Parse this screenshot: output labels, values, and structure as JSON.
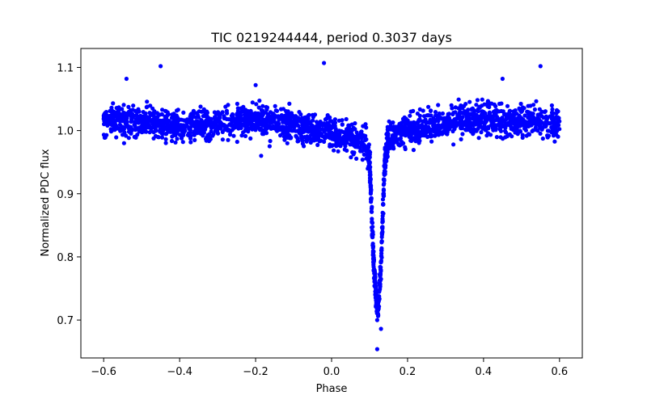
{
  "chart_data": {
    "type": "scatter",
    "title": "TIC 0219244444, period 0.3037 days",
    "xlabel": "Phase",
    "ylabel": "Normalized PDC flux",
    "xlim": [
      -0.66,
      0.66
    ],
    "ylim": [
      0.64,
      1.13
    ],
    "xticks": [
      -0.6,
      -0.4,
      -0.2,
      0.0,
      0.2,
      0.4,
      0.6
    ],
    "xtick_labels": [
      "−0.6",
      "−0.4",
      "−0.2",
      "0.0",
      "0.2",
      "0.4",
      "0.6"
    ],
    "yticks": [
      0.7,
      0.8,
      0.9,
      1.0,
      1.1
    ],
    "ytick_labels": [
      "0.7",
      "0.8",
      "0.9",
      "1.0",
      "1.1"
    ],
    "grid": false,
    "marker_color": "#0000ff",
    "series": [
      {
        "marker": "circle",
        "x_range": [
          -0.6,
          0.6
        ],
        "baseline_profile": {
          "x": [
            -0.6,
            -0.5,
            -0.4,
            -0.3,
            -0.2,
            -0.1,
            0.0,
            0.05,
            0.09,
            0.1,
            0.105,
            0.11,
            0.115,
            0.12,
            0.125,
            0.13,
            0.135,
            0.14,
            0.15,
            0.2,
            0.3,
            0.4,
            0.5,
            0.6
          ],
          "y": [
            1.018,
            1.015,
            1.005,
            1.012,
            1.018,
            1.008,
            0.995,
            0.99,
            0.98,
            0.95,
            0.88,
            0.8,
            0.75,
            0.72,
            0.73,
            0.79,
            0.87,
            0.95,
            0.99,
            1.0,
            1.012,
            1.018,
            1.015,
            1.012
          ]
        },
        "scatter_sd": 0.012,
        "outliers": [
          {
            "x": -0.45,
            "y": 1.102
          },
          {
            "x": -0.02,
            "y": 1.107
          },
          {
            "x": 0.55,
            "y": 1.102
          },
          {
            "x": -0.54,
            "y": 1.082
          },
          {
            "x": 0.45,
            "y": 1.082
          },
          {
            "x": -0.2,
            "y": 1.072
          },
          {
            "x": 0.12,
            "y": 0.654
          },
          {
            "x": 0.13,
            "y": 0.686
          },
          {
            "x": 0.12,
            "y": 0.7
          }
        ]
      }
    ]
  }
}
